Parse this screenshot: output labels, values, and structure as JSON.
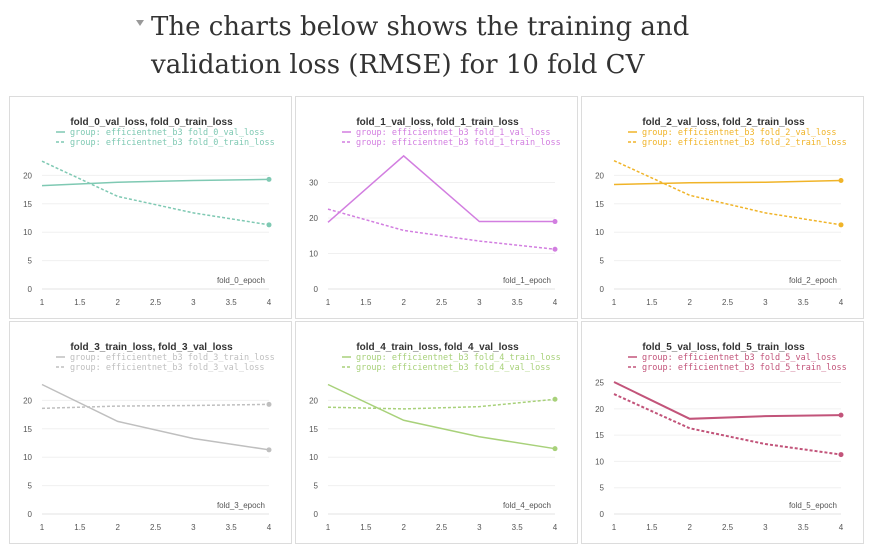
{
  "heading": {
    "line1": "The charts below shows the training and",
    "line2": "validation loss (RMSE) for 10 fold CV"
  },
  "chart_data": [
    {
      "type": "line",
      "title": "fold_0_val_loss, fold_0_train_loss",
      "xlabel": "fold_0_epoch",
      "color": "#7fc9b3",
      "x": [
        1,
        2,
        3,
        4
      ],
      "xticks": [
        "1",
        "1.5",
        "2",
        "2.5",
        "3",
        "3.5",
        "4"
      ],
      "yticks": [
        "0",
        "5",
        "10",
        "15",
        "20"
      ],
      "ylim": [
        0,
        25
      ],
      "series": [
        {
          "name": "group: efficientnet_b3 fold_0_val_loss",
          "dash": false,
          "values": [
            18.2,
            18.8,
            19.1,
            19.3
          ]
        },
        {
          "name": "group: efficientnet_b3 fold_0_train_loss",
          "dash": true,
          "values": [
            22.5,
            16.3,
            13.4,
            11.3
          ]
        }
      ]
    },
    {
      "type": "line",
      "title": "fold_1_val_loss, fold_1_train_loss",
      "xlabel": "fold_1_epoch",
      "color": "#d27ee0",
      "x": [
        1,
        2,
        3,
        4
      ],
      "xticks": [
        "1",
        "1.5",
        "2",
        "2.5",
        "3",
        "3.5",
        "4"
      ],
      "yticks": [
        "0",
        "10",
        "20",
        "30"
      ],
      "ylim": [
        0,
        40
      ],
      "series": [
        {
          "name": "group: efficientnet_b3 fold_1_val_loss",
          "dash": false,
          "values": [
            18.8,
            37.5,
            19.0,
            19.0
          ]
        },
        {
          "name": "group: efficientnet_b3 fold_1_train_loss",
          "dash": true,
          "values": [
            22.5,
            16.5,
            13.5,
            11.2
          ]
        }
      ]
    },
    {
      "type": "line",
      "title": "fold_2_val_loss, fold_2_train_loss",
      "xlabel": "fold_2_epoch",
      "color": "#f0b429",
      "x": [
        1,
        2,
        3,
        4
      ],
      "xticks": [
        "1",
        "1.5",
        "2",
        "2.5",
        "3",
        "3.5",
        "4"
      ],
      "yticks": [
        "0",
        "5",
        "10",
        "15",
        "20"
      ],
      "ylim": [
        0,
        25
      ],
      "series": [
        {
          "name": "group: efficientnet_b3 fold_2_val_loss",
          "dash": false,
          "values": [
            18.4,
            18.7,
            18.8,
            19.1
          ]
        },
        {
          "name": "group: efficientnet_b3 fold_2_train_loss",
          "dash": true,
          "values": [
            22.6,
            16.5,
            13.4,
            11.3
          ]
        }
      ]
    },
    {
      "type": "line",
      "title": "fold_3_train_loss, fold_3_val_loss",
      "xlabel": "fold_3_epoch",
      "color": "#bfbfbf",
      "x": [
        1,
        2,
        3,
        4
      ],
      "xticks": [
        "1",
        "1.5",
        "2",
        "2.5",
        "3",
        "3.5",
        "4"
      ],
      "yticks": [
        "0",
        "5",
        "10",
        "15",
        "20"
      ],
      "ylim": [
        0,
        25
      ],
      "series": [
        {
          "name": "group: efficientnet_b3 fold_3_train_loss",
          "dash": false,
          "values": [
            22.8,
            16.3,
            13.3,
            11.3
          ]
        },
        {
          "name": "group: efficientnet_b3 fold_3_val_loss",
          "dash": true,
          "values": [
            18.6,
            19.0,
            19.1,
            19.3
          ]
        }
      ]
    },
    {
      "type": "line",
      "title": "fold_4_train_loss, fold_4_val_loss",
      "xlabel": "fold_4_epoch",
      "color": "#a8d17a",
      "x": [
        1,
        2,
        3,
        4
      ],
      "xticks": [
        "1",
        "1.5",
        "2",
        "2.5",
        "3",
        "3.5",
        "4"
      ],
      "yticks": [
        "0",
        "5",
        "10",
        "15",
        "20"
      ],
      "ylim": [
        0,
        25
      ],
      "series": [
        {
          "name": "group: efficientnet_b3 fold_4_train_loss",
          "dash": false,
          "values": [
            22.8,
            16.5,
            13.6,
            11.5
          ]
        },
        {
          "name": "group: efficientnet_b3 fold_4_val_loss",
          "dash": true,
          "values": [
            18.8,
            18.5,
            18.9,
            20.2
          ]
        }
      ]
    },
    {
      "type": "line",
      "title": "fold_5_val_loss, fold_5_train_loss",
      "xlabel": "fold_5_epoch",
      "color": "#c2547a",
      "x": [
        1,
        2,
        3,
        4
      ],
      "xticks": [
        "1",
        "1.5",
        "2",
        "2.5",
        "3",
        "3.5",
        "4"
      ],
      "yticks": [
        "0",
        "5",
        "10",
        "15",
        "20",
        "25"
      ],
      "ylim": [
        0,
        27
      ],
      "series": [
        {
          "name": "group: efficientnet_b3 fold_5_val_loss",
          "dash": false,
          "values": [
            25.1,
            18.1,
            18.6,
            18.8
          ]
        },
        {
          "name": "group: efficientnet_b3 fold_5_train_loss",
          "dash": true,
          "values": [
            22.8,
            16.3,
            13.3,
            11.3
          ]
        }
      ]
    }
  ]
}
